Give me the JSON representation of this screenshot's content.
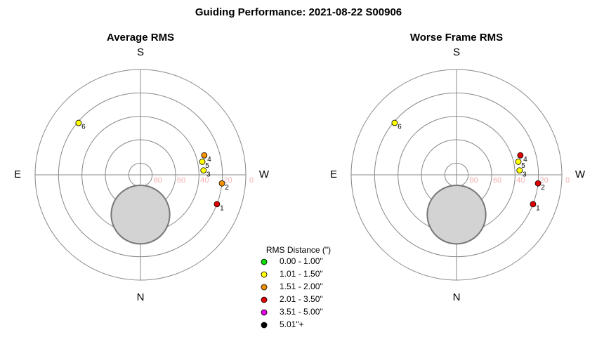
{
  "title": "Guiding Performance: 2021-08-22 S00906",
  "legend": {
    "title": "RMS Distance (\")",
    "items": [
      {
        "label": "0.00 - 1.00\"",
        "color": "#00dd00"
      },
      {
        "label": "1.01 - 1.50\"",
        "color": "#ffff00"
      },
      {
        "label": "1.51 - 2.00\"",
        "color": "#f09000"
      },
      {
        "label": "2.01 - 3.50\"",
        "color": "#e00000"
      },
      {
        "label": "3.51 - 5.00\"",
        "color": "#e000e0"
      },
      {
        "label": "5.01\"+",
        "color": "#000000"
      }
    ]
  },
  "chart_data": [
    {
      "type": "polar",
      "title": "Average RMS",
      "directions": [
        "S",
        "W",
        "N",
        "E"
      ],
      "rlim": [
        90,
        0
      ],
      "rticks": [
        80,
        60,
        40,
        20,
        0
      ],
      "moon": {
        "alt": 56,
        "az": 0,
        "radius": 25
      },
      "labels": [
        "1",
        "2",
        "3",
        "4",
        "5",
        "6"
      ],
      "az": [
        291,
        276,
        266,
        253,
        258,
        130
      ],
      "alt": [
        20,
        20,
        36,
        33,
        36,
        21
      ],
      "colors": [
        "#e00000",
        "#f09000",
        "#ffff00",
        "#f09000",
        "#ffff00",
        "#ffff00"
      ]
    },
    {
      "type": "polar",
      "title": "Worse Frame RMS",
      "directions": [
        "S",
        "W",
        "N",
        "E"
      ],
      "rlim": [
        90,
        0
      ],
      "rticks": [
        80,
        60,
        40,
        20,
        0
      ],
      "moon": {
        "alt": 56,
        "az": 0,
        "radius": 25
      },
      "labels": [
        "1",
        "2",
        "3",
        "4",
        "5",
        "6"
      ],
      "az": [
        291,
        276,
        266,
        253,
        258,
        130
      ],
      "alt": [
        20,
        20,
        36,
        33,
        36,
        21
      ],
      "colors": [
        "#e00000",
        "#e00000",
        "#ffff00",
        "#e00000",
        "#ffff00",
        "#ffff00"
      ]
    }
  ]
}
